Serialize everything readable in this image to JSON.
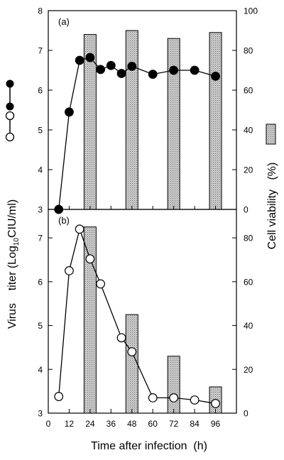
{
  "chart_data": [
    {
      "type": "bar+line",
      "panel_label": "(a)",
      "x": [
        6,
        12,
        18,
        24,
        30,
        36,
        42,
        48,
        60,
        72,
        84,
        96
      ],
      "series": [
        {
          "marker": "filled-circle",
          "axis": "left",
          "x": [
            6,
            12,
            18,
            24,
            30,
            36,
            42,
            48,
            60,
            72,
            84,
            96
          ],
          "values": [
            3.0,
            5.45,
            6.75,
            6.82,
            6.52,
            6.62,
            6.42,
            6.6,
            6.4,
            6.5,
            6.5,
            6.35
          ]
        },
        {
          "kind": "bar",
          "pattern": "stippled-gray",
          "axis": "right",
          "x": [
            24,
            48,
            72,
            96
          ],
          "values": [
            88,
            90,
            86,
            89
          ]
        }
      ],
      "left_yticks": [
        "3",
        "4",
        "5",
        "6",
        "7",
        "8"
      ],
      "right_yticks": [
        "0",
        "20",
        "40",
        "60",
        "80",
        "100"
      ],
      "left_ylim": [
        3,
        8
      ],
      "right_ylim": [
        0,
        100
      ],
      "xlim": [
        0,
        108
      ]
    },
    {
      "type": "bar+line",
      "panel_label": "(b)",
      "x": [
        6,
        12,
        18,
        24,
        30,
        42,
        48,
        60,
        72,
        84,
        96
      ],
      "series": [
        {
          "marker": "open-circle",
          "axis": "left",
          "x": [
            6,
            12,
            18,
            24,
            30,
            42,
            48,
            60,
            72,
            84,
            96
          ],
          "values": [
            3.38,
            6.25,
            7.2,
            6.52,
            5.95,
            4.72,
            4.4,
            3.35,
            3.35,
            3.3,
            3.22
          ]
        },
        {
          "kind": "bar",
          "pattern": "stippled-gray",
          "axis": "right",
          "x": [
            24,
            48,
            72,
            96
          ],
          "values": [
            85,
            45,
            26,
            12
          ]
        }
      ],
      "left_yticks": [
        "3",
        "4",
        "5",
        "6",
        "7"
      ],
      "right_yticks": [
        "0",
        "20",
        "40",
        "60",
        "80"
      ],
      "left_ylim": [
        3,
        7.65
      ],
      "right_ylim": [
        0,
        93
      ],
      "xlim": [
        0,
        108
      ]
    }
  ],
  "axes": {
    "xlabel": "Time after infection  (h)",
    "left_ylabel_main": "Virus    titer",
    "left_ylabel_unit_pre": "(Log",
    "left_ylabel_unit_sub": "10",
    "left_ylabel_unit_post": "CIU/ml)",
    "right_ylabel": "Cell viability   (%)",
    "xticks": [
      "0",
      "12",
      "24",
      "36",
      "48",
      "60",
      "72",
      "84",
      "96"
    ]
  },
  "legend": {
    "left": [
      "filled-circle-line",
      "open-circle-line"
    ],
    "right": [
      "stippled-bar"
    ]
  },
  "colors": {
    "bar_fill": "#c8c8c8",
    "line": "#000000",
    "background": "#ffffff"
  }
}
